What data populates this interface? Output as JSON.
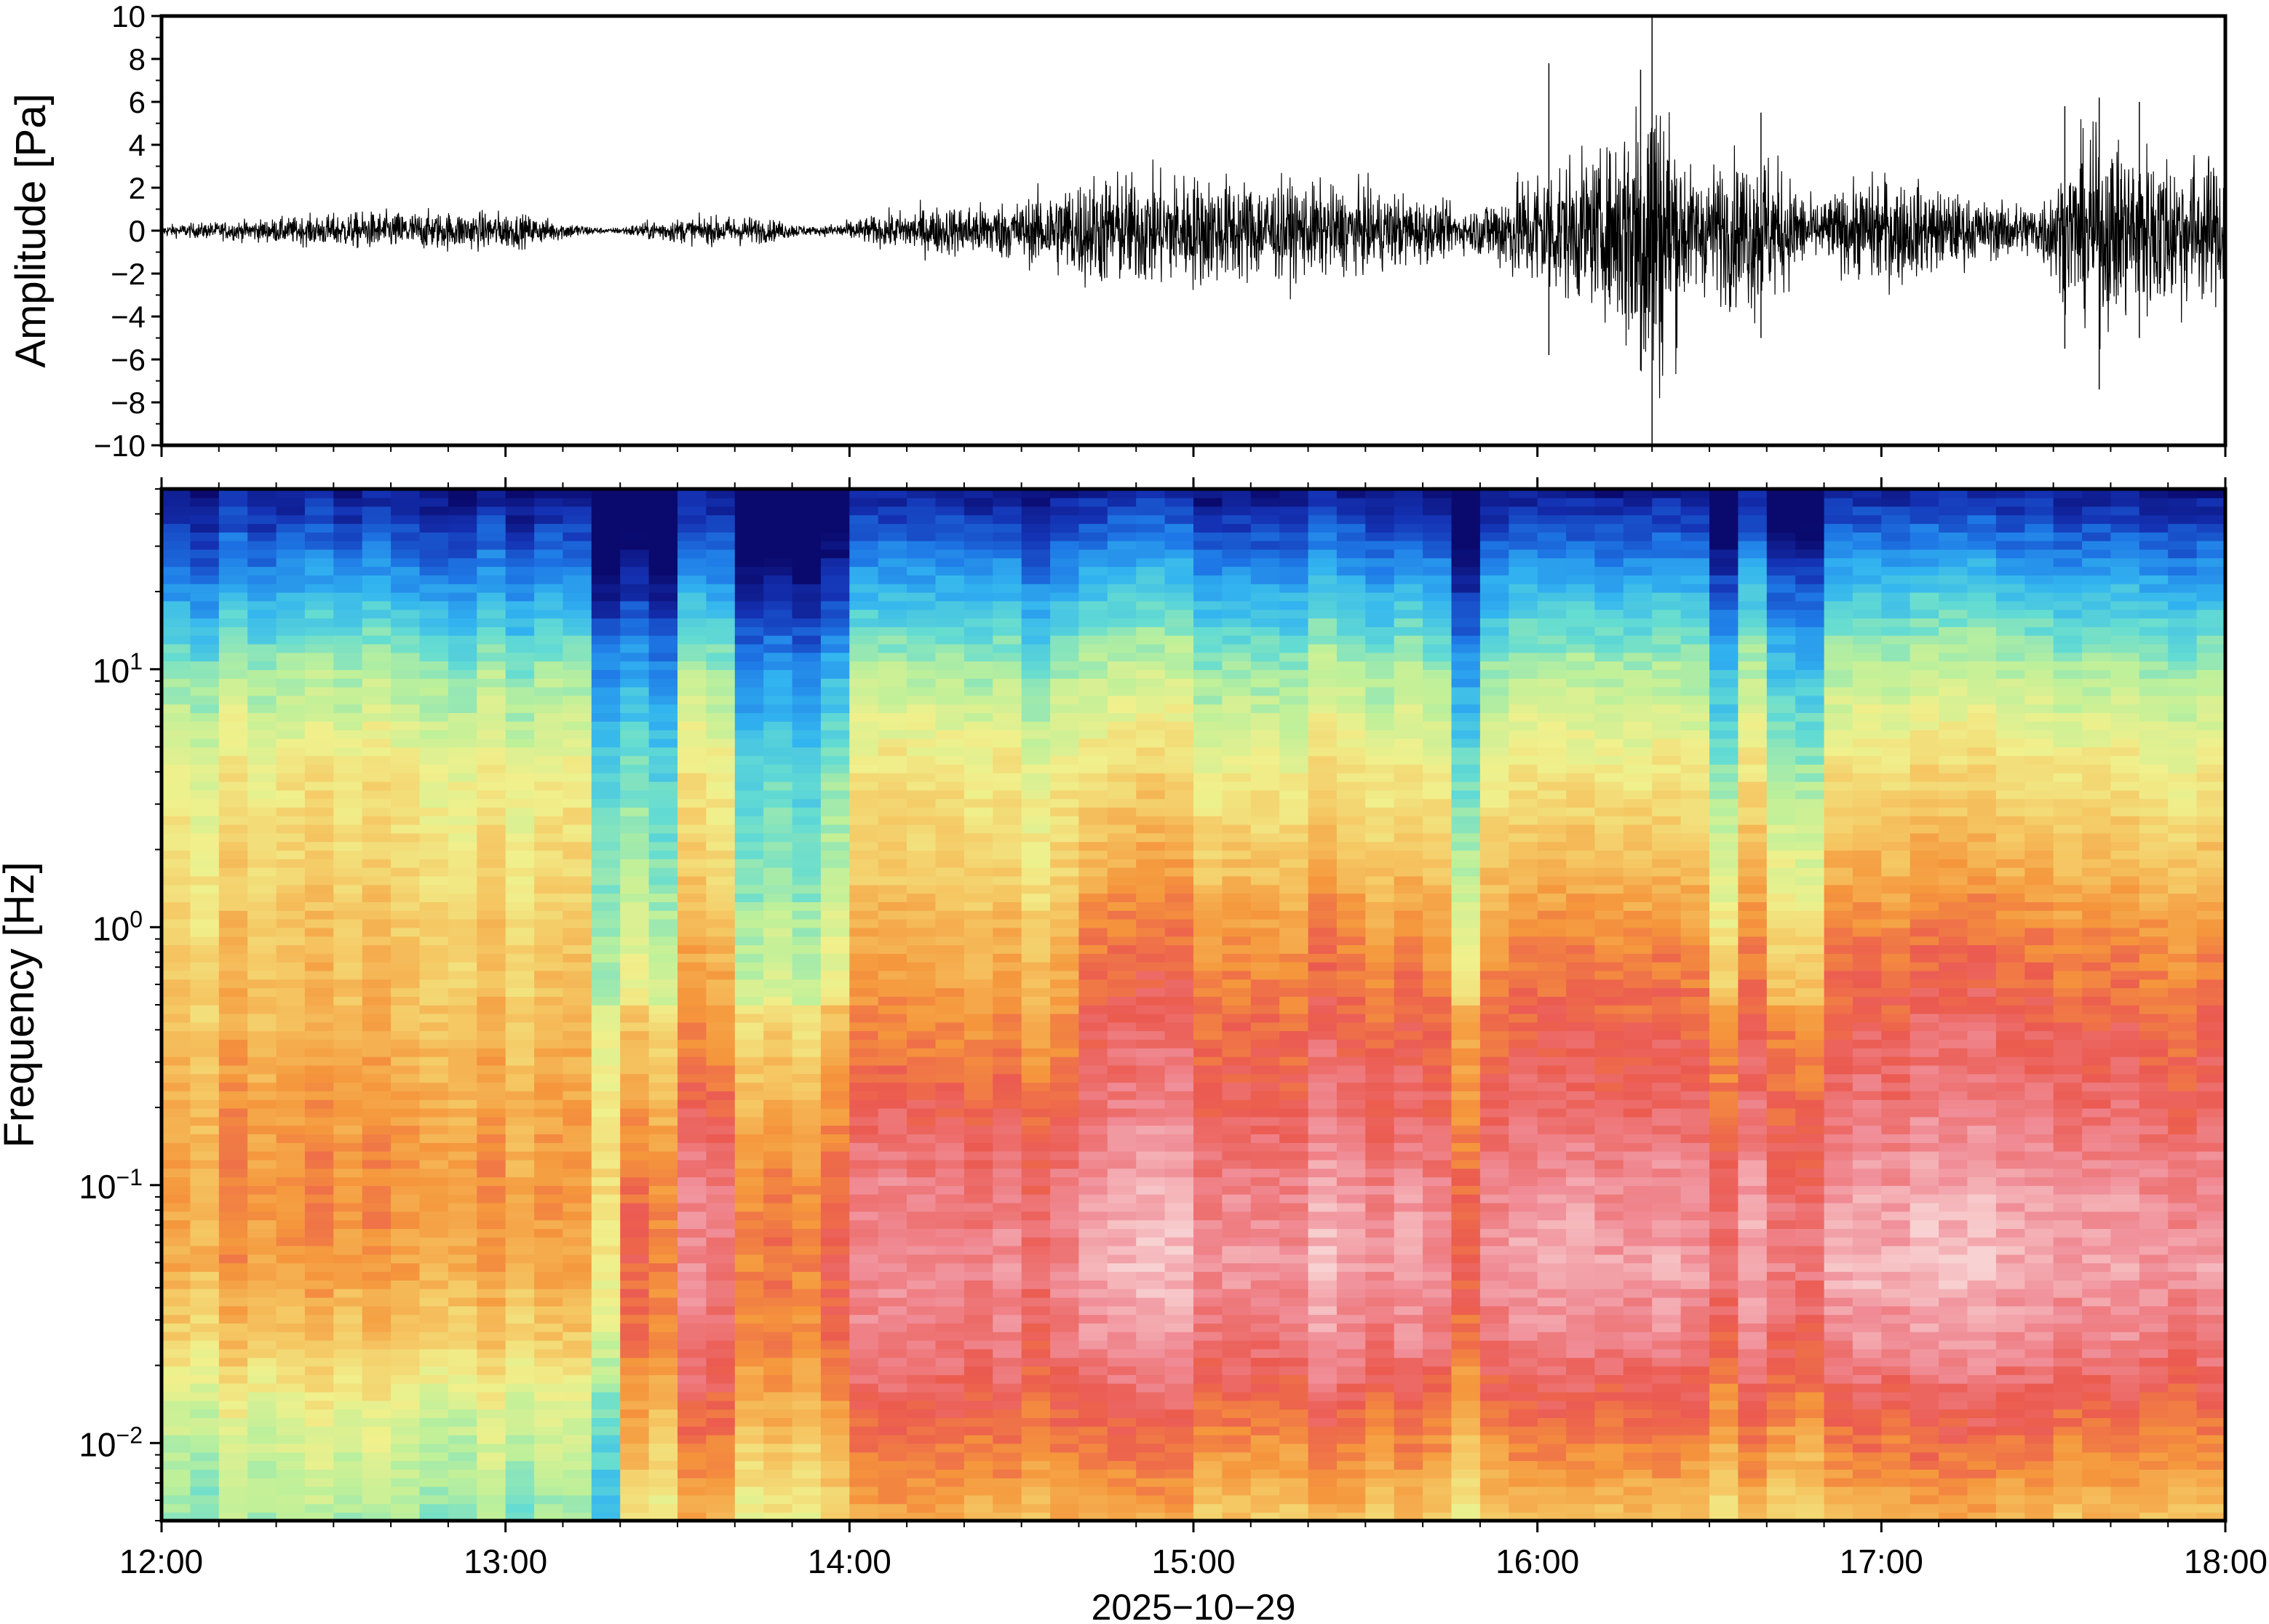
{
  "chart_data": [
    {
      "type": "line",
      "panel": "waveform",
      "ylabel": "Amplitude [Pa]",
      "ylim": [
        -10,
        10
      ],
      "yticks": [
        10,
        8,
        6,
        4,
        2,
        0,
        -2,
        -4,
        -6,
        -8,
        -10
      ],
      "ytick_labels": [
        "10",
        "8",
        "6",
        "4",
        "2",
        "0",
        "−2",
        "−4",
        "−6",
        "−8",
        "−10"
      ],
      "xlim": [
        "12:00",
        "18:00"
      ],
      "line_color": "#000000",
      "envelope": {
        "time_hours": [
          12.0,
          12.3,
          12.6,
          13.0,
          13.3,
          13.45,
          13.7,
          13.9,
          14.2,
          14.5,
          14.7,
          15.0,
          15.3,
          15.6,
          15.8,
          16.0,
          16.2,
          16.33,
          16.45,
          16.65,
          16.8,
          17.0,
          17.3,
          17.45,
          17.6,
          17.8,
          18.0
        ],
        "amplitude_pa": [
          0.3,
          0.6,
          1.0,
          1.0,
          0.1,
          0.6,
          0.8,
          0.2,
          1.2,
          1.6,
          3.0,
          3.0,
          2.5,
          2.0,
          1.0,
          3.5,
          4.0,
          10.0,
          3.0,
          4.5,
          1.5,
          3.0,
          1.5,
          1.5,
          5.0,
          4.5,
          3.5
        ]
      },
      "spikes": [
        {
          "time": "16:20",
          "max_pa": 10,
          "min_pa": -10
        },
        {
          "time": "16:18",
          "max_pa": 7.5,
          "min_pa": -6.5
        },
        {
          "time": "16:02",
          "max_pa": 7.8,
          "min_pa": -5.8
        },
        {
          "time": "17:38",
          "max_pa": 6.2,
          "min_pa": -7.4
        },
        {
          "time": "17:32",
          "max_pa": 5.8,
          "min_pa": -5.5
        },
        {
          "time": "17:45",
          "max_pa": 6.0,
          "min_pa": -5.0
        },
        {
          "time": "16:39",
          "max_pa": 5.5,
          "min_pa": -5.0
        }
      ]
    },
    {
      "type": "heatmap",
      "panel": "spectrogram",
      "ylabel": "Frequency [Hz]",
      "yscale": "log",
      "ylim_hz": [
        0.005,
        50
      ],
      "yticks_hz": [
        10,
        1,
        0.1,
        0.01
      ],
      "ytick_labels": [
        {
          "base": "10",
          "exp": "1"
        },
        {
          "base": "10",
          "exp": "0"
        },
        {
          "base": "10",
          "exp": "−1"
        },
        {
          "base": "10",
          "exp": "−2"
        }
      ],
      "xlabel": "2025−10−29",
      "xticks": [
        "12:00",
        "13:00",
        "14:00",
        "15:00",
        "16:00",
        "17:00",
        "18:00"
      ],
      "colormap": [
        "#0a0a6e",
        "#1432b4",
        "#1e78e6",
        "#32b4f0",
        "#64dcd2",
        "#bef09a",
        "#f0f08c",
        "#f5c864",
        "#f5963c",
        "#eb5a50",
        "#f08c96",
        "#f8d2d2"
      ],
      "intensity_profile": {
        "log10_freq": [
          1.7,
          1.3,
          1.0,
          0.6,
          0.2,
          0.0,
          -0.4,
          -0.7,
          -1.0,
          -1.3,
          -1.6,
          -1.9,
          -2.3
        ],
        "early_12_to_13_20": [
          0.02,
          0.25,
          0.42,
          0.55,
          0.6,
          0.62,
          0.66,
          0.7,
          0.72,
          0.7,
          0.62,
          0.5,
          0.42
        ],
        "mid_13_30_to_14_40": [
          0.02,
          0.25,
          0.42,
          0.55,
          0.6,
          0.65,
          0.72,
          0.8,
          0.86,
          0.88,
          0.86,
          0.78,
          0.66
        ],
        "late_14_40_to_18_00": [
          0.04,
          0.3,
          0.45,
          0.58,
          0.68,
          0.74,
          0.82,
          0.86,
          0.92,
          0.95,
          0.9,
          0.8,
          0.66
        ]
      },
      "dark_columns": [
        "13:20",
        "13:28",
        "13:45",
        "13:50",
        "13:55",
        "15:46",
        "16:32",
        "16:45"
      ]
    }
  ]
}
